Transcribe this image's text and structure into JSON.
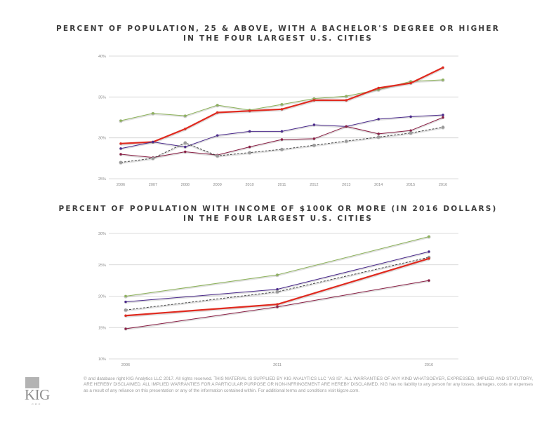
{
  "chart_data": [
    {
      "type": "line",
      "title": "PERCENT OF POPULATION, 25 & ABOVE, WITH A BACHELOR'S DEGREE OR HIGHER\nIN THE FOUR LARGEST U.S. CITIES",
      "title_lines": [
        "PERCENT OF POPULATION, 25 & ABOVE, WITH A BACHELOR'S DEGREE OR HIGHER",
        "IN THE FOUR LARGEST U.S. CITIES"
      ],
      "xlabel": "",
      "ylabel": "",
      "x": [
        "2006",
        "2007",
        "2008",
        "2009",
        "2010",
        "2011",
        "2012",
        "2013",
        "2014",
        "2015",
        "2016"
      ],
      "ylim": [
        25,
        40
      ],
      "yticks": [
        25,
        30,
        35,
        40
      ],
      "ytick_labels": [
        "25%",
        "30%",
        "35%",
        "40%"
      ],
      "grid": true,
      "legend": "none",
      "series": [
        {
          "name": "green-series",
          "color": "#8db35a",
          "style": "solid",
          "width": "thin",
          "values": [
            32.1,
            33.0,
            32.7,
            34.0,
            33.4,
            34.1,
            34.8,
            35.1,
            35.9,
            36.9,
            37.1
          ]
        },
        {
          "name": "red-series",
          "color": "#e02a1f",
          "style": "solid",
          "width": "thick",
          "values": [
            29.3,
            29.5,
            31.1,
            33.1,
            33.3,
            33.5,
            34.6,
            34.6,
            36.1,
            36.7,
            38.6
          ]
        },
        {
          "name": "purple-series",
          "color": "#4b2a8c",
          "style": "solid",
          "width": "thin",
          "values": [
            28.7,
            29.5,
            28.9,
            30.3,
            30.8,
            30.8,
            31.6,
            31.4,
            32.3,
            32.6,
            32.8
          ]
        },
        {
          "name": "maroon-series",
          "color": "#8a1f45",
          "style": "solid",
          "width": "thin",
          "values": [
            28.0,
            27.6,
            28.3,
            27.9,
            28.9,
            29.8,
            29.9,
            31.4,
            30.5,
            30.9,
            32.5
          ]
        },
        {
          "name": "national-dashed-series",
          "color": "#444444",
          "style": "dashed",
          "width": "thin",
          "values": [
            27.0,
            27.5,
            29.4,
            27.8,
            28.2,
            28.6,
            29.1,
            29.6,
            30.1,
            30.6,
            31.3
          ]
        }
      ]
    },
    {
      "type": "line",
      "title": "PERCENT OF POPULATION WITH INCOME OF $100K OR MORE (IN 2016 DOLLARS)\nIN THE FOUR LARGEST U.S. CITIES",
      "title_lines": [
        "PERCENT OF POPULATION WITH INCOME OF $100K OR MORE (IN 2016 DOLLARS)",
        "IN THE FOUR LARGEST U.S. CITIES"
      ],
      "xlabel": "",
      "ylabel": "",
      "x": [
        "2006",
        "2011",
        "2016"
      ],
      "ylim": [
        10,
        30
      ],
      "yticks": [
        10,
        15,
        20,
        25,
        30
      ],
      "ytick_labels": [
        "10%",
        "15%",
        "20%",
        "25%",
        "30%"
      ],
      "grid": true,
      "legend": "none",
      "series": [
        {
          "name": "green-series",
          "color": "#8db35a",
          "style": "solid",
          "width": "thin",
          "values": [
            20.0,
            23.4,
            29.5
          ]
        },
        {
          "name": "purple-series",
          "color": "#4b2a8c",
          "style": "solid",
          "width": "thin",
          "values": [
            19.1,
            21.1,
            27.1
          ]
        },
        {
          "name": "national-dashed-series",
          "color": "#444444",
          "style": "dashed",
          "width": "thin",
          "values": [
            17.8,
            20.7,
            26.2
          ]
        },
        {
          "name": "red-series",
          "color": "#e02a1f",
          "style": "solid",
          "width": "thick",
          "values": [
            16.9,
            18.7,
            26.0
          ]
        },
        {
          "name": "maroon-series",
          "color": "#8a1f45",
          "style": "solid",
          "width": "thin",
          "values": [
            14.8,
            18.3,
            22.5
          ]
        }
      ]
    }
  ],
  "footer": {
    "disclaimer": "© and database right KIG Analytics LLC 2017. All rights reserved. THIS MATERIAL IS SUPPLIED BY KIG ANALYTICS LLC \"AS IS\". ALL WARRANTIES OF ANY KIND WHATSOEVER, EXPRESSED, IMPLIED AND STATUTORY, ARE HEREBY DISCLAIMED. ALL IMPLIED WARRANTIES FOR A PARTICULAR PURPOSE OR NON-INFRINGEMENT ARE HEREBY DISCLAIMED. KIG has no liability to any person for any losses, damages, costs or expenses as a result of any reliance on this presentation or any of the information contained within. For additional terms and conditions visit kigcre.com.",
    "logo_text": "KIG",
    "logo_subtext": "CRE"
  }
}
